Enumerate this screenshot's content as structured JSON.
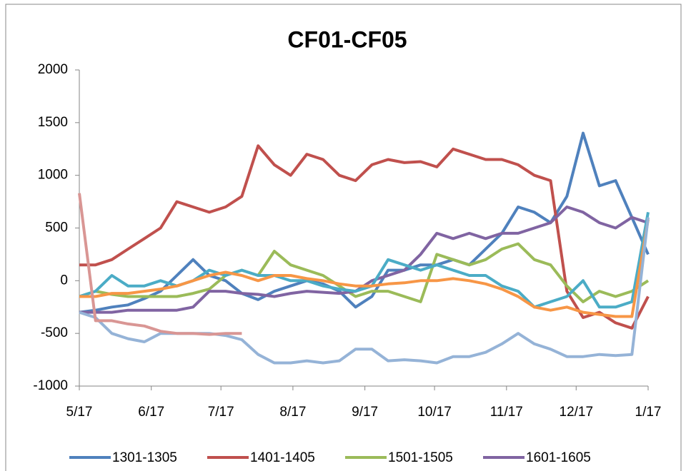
{
  "chart_data": {
    "type": "line",
    "title": "CF01-CF05",
    "x": [
      0,
      7,
      14,
      21,
      28,
      35,
      42,
      49,
      56,
      63,
      70,
      77,
      84,
      91,
      98,
      105,
      112,
      119,
      126,
      133,
      140,
      147,
      154,
      161,
      168,
      175,
      182,
      189,
      196,
      203,
      210,
      217,
      224,
      231,
      238,
      245
    ],
    "xlim": [
      0,
      245
    ],
    "xticks": [
      {
        "value": 0,
        "label": "5/17"
      },
      {
        "value": 31,
        "label": "6/17"
      },
      {
        "value": 61,
        "label": "7/17"
      },
      {
        "value": 92,
        "label": "8/17"
      },
      {
        "value": 123,
        "label": "9/17"
      },
      {
        "value": 153,
        "label": "10/17"
      },
      {
        "value": 184,
        "label": "11/17"
      },
      {
        "value": 214,
        "label": "12/17"
      },
      {
        "value": 245,
        "label": "1/17"
      }
    ],
    "ylim": [
      -1000,
      2000
    ],
    "yticks": [
      -1000,
      -500,
      0,
      500,
      1000,
      1500,
      2000
    ],
    "grid": false,
    "legend": "bottom",
    "series": [
      {
        "name": "1301-1305",
        "color": "#4f81bd",
        "values": [
          -300,
          -280,
          -250,
          -230,
          -170,
          -100,
          50,
          200,
          50,
          0,
          -120,
          -180,
          -100,
          -50,
          0,
          -30,
          -100,
          -250,
          -150,
          100,
          100,
          150,
          150,
          200,
          150,
          300,
          450,
          700,
          650,
          550,
          800,
          1400,
          900,
          950,
          600,
          250
        ]
      },
      {
        "name": "1401-1405",
        "color": "#c0504d",
        "values": [
          150,
          150,
          200,
          300,
          400,
          500,
          750,
          700,
          650,
          700,
          800,
          1280,
          1100,
          1000,
          1200,
          1150,
          1000,
          950,
          1100,
          1150,
          1120,
          1130,
          1080,
          1250,
          1200,
          1150,
          1150,
          1100,
          1000,
          950,
          -100,
          -350,
          -300,
          -400,
          -450,
          -150
        ]
      },
      {
        "name": "1501-1505",
        "color": "#9bbb59",
        "values": [
          -150,
          -100,
          -130,
          -150,
          -150,
          -150,
          -150,
          -120,
          -80,
          50,
          100,
          50,
          280,
          150,
          100,
          50,
          -50,
          -150,
          -100,
          -100,
          -150,
          -200,
          250,
          200,
          150,
          200,
          300,
          350,
          200,
          150,
          -50,
          -200,
          -100,
          -150,
          -100,
          0
        ]
      },
      {
        "name": "1601-1605",
        "color": "#8064a2",
        "values": [
          -300,
          -300,
          -300,
          -280,
          -280,
          -280,
          -280,
          -250,
          -100,
          -100,
          -120,
          -130,
          -150,
          -120,
          -100,
          -110,
          -120,
          -100,
          0,
          50,
          100,
          250,
          450,
          400,
          450,
          400,
          450,
          450,
          500,
          550,
          700,
          650,
          550,
          500,
          600,
          550
        ]
      },
      {
        "color": "#4bacc6",
        "values": [
          -150,
          -100,
          50,
          -50,
          -50,
          0,
          -50,
          0,
          100,
          50,
          100,
          50,
          50,
          0,
          0,
          -50,
          -80,
          -100,
          -50,
          200,
          150,
          100,
          150,
          100,
          50,
          50,
          -50,
          -100,
          -250,
          -200,
          -150,
          0,
          -250,
          -250,
          -200,
          650
        ]
      },
      {
        "color": "#f79646",
        "values": [
          -150,
          -150,
          -120,
          -120,
          -100,
          -80,
          -50,
          0,
          50,
          80,
          50,
          0,
          50,
          50,
          20,
          0,
          -30,
          -50,
          -50,
          -30,
          -20,
          0,
          0,
          20,
          0,
          -30,
          -80,
          -150,
          -250,
          -280,
          -250,
          -300,
          -320,
          -340,
          -340,
          580
        ]
      },
      {
        "color": "#95b3d7",
        "values": [
          -300,
          -350,
          -500,
          -550,
          -580,
          -500,
          -500,
          -500,
          -500,
          -520,
          -560,
          -700,
          -780,
          -780,
          -760,
          -780,
          -760,
          -650,
          -650,
          -760,
          -750,
          -760,
          -780,
          -720,
          -720,
          -680,
          -600,
          -500,
          -600,
          -650,
          -720,
          -720,
          -700,
          -710,
          -700,
          600
        ]
      },
      {
        "color": "#d99694",
        "values": [
          830,
          -380,
          -380,
          -410,
          -430,
          -480,
          -500,
          -500,
          -510,
          -500,
          -500,
          null,
          null,
          null,
          null,
          null,
          null,
          null,
          null,
          null,
          null,
          null,
          null,
          null,
          null,
          null,
          null,
          null,
          null,
          null,
          null,
          null,
          null,
          null,
          null,
          null
        ]
      }
    ]
  }
}
